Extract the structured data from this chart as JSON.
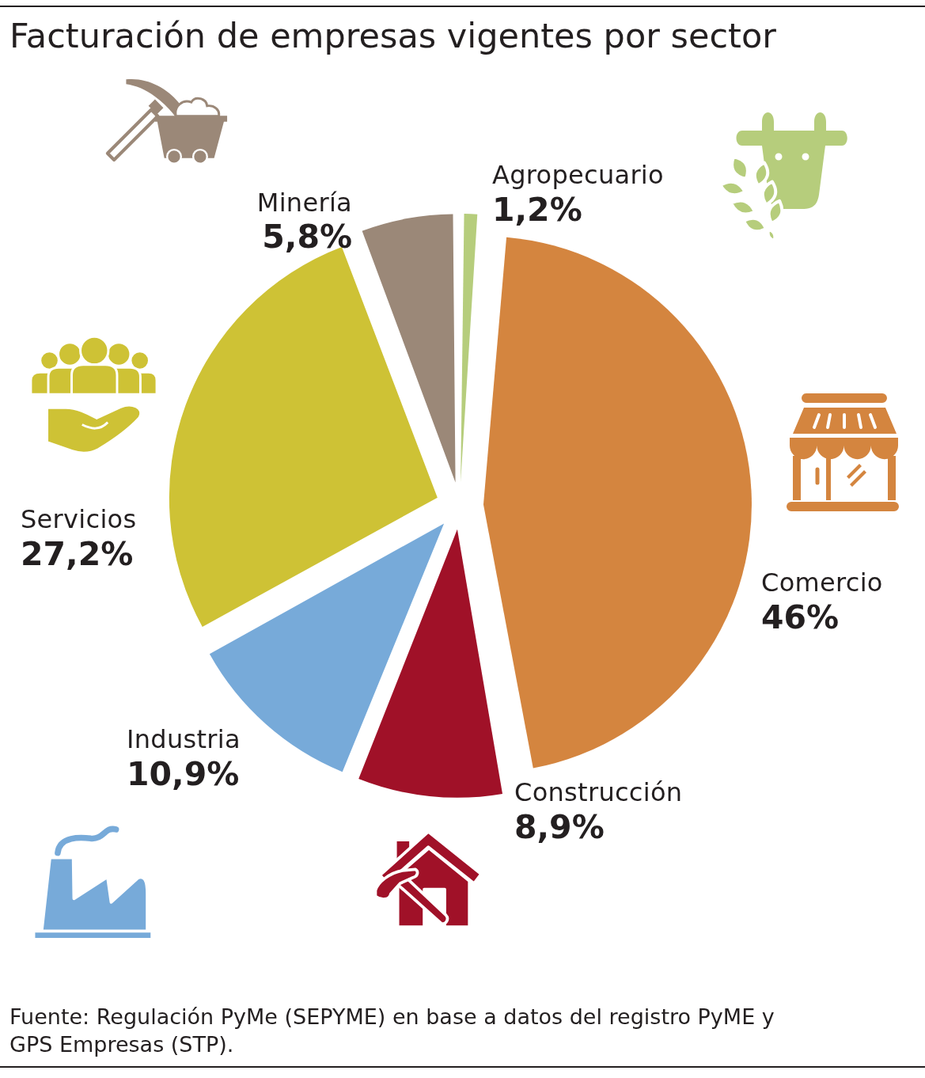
{
  "chart_data": {
    "type": "pie",
    "title": "Facturación de empresas vigentes por sector",
    "categories": [
      "Agropecuario",
      "Comercio",
      "Construcción",
      "Industria",
      "Servicios",
      "Minería"
    ],
    "values": [
      1.2,
      46,
      8.9,
      10.9,
      27.2,
      5.8
    ],
    "colors": [
      "#b6cd7c",
      "#d4853f",
      "#a01128",
      "#77aad9",
      "#cec235",
      "#9b8878"
    ],
    "value_labels": [
      "1,2%",
      "46%",
      "8,9%",
      "10,9%",
      "27,2%",
      "5,8%"
    ],
    "legend": false,
    "annotations": [
      "Fuente: Regulación PyMe (SEPYME) en base a datos del registro PyME y GPS Empresas (STP)."
    ]
  }
}
